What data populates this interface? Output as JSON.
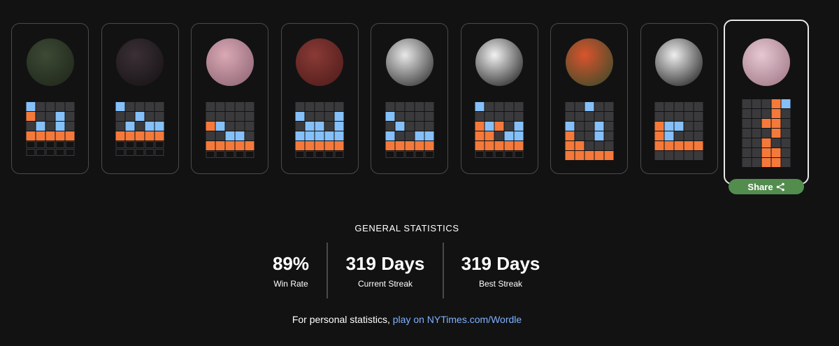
{
  "share": "Share",
  "stats": {
    "title": "GENERAL STATISTICS",
    "items": [
      {
        "value": "89%",
        "label": "Win Rate"
      },
      {
        "value": "319 Days",
        "label": "Current Streak"
      },
      {
        "value": "319 Days",
        "label": "Best Streak"
      }
    ]
  },
  "footer": {
    "text": "For personal statistics,",
    "link": "play on NYTimes.com/Wordle"
  }
}
